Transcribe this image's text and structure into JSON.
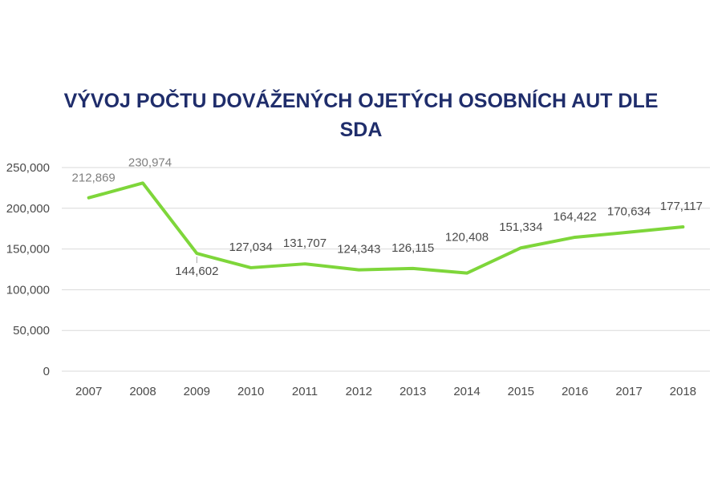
{
  "chart_data": {
    "type": "line",
    "title_line1": "VÝVOJ POČTU DOVÁŽENÝCH OJETÝCH OSOBNÍCH AUT DLE",
    "title_line2": "SDA",
    "xlabel": "",
    "ylabel": "",
    "categories": [
      "2007",
      "2008",
      "2009",
      "2010",
      "2011",
      "2012",
      "2013",
      "2014",
      "2015",
      "2016",
      "2017",
      "2018"
    ],
    "values": [
      212869,
      230974,
      144602,
      127034,
      131707,
      124343,
      126115,
      120408,
      151334,
      164422,
      170634,
      177117
    ],
    "value_labels": [
      "212,869",
      "230,974",
      "144,602",
      "127,034",
      "131,707",
      "124,343",
      "126,115",
      "120,408",
      "151,334",
      "164,422",
      "170,634",
      "177,117"
    ],
    "ylim": [
      0,
      250000
    ],
    "yticks": [
      0,
      50000,
      100000,
      150000,
      200000,
      250000
    ],
    "ytick_labels": [
      "0",
      "50,000",
      "100,000",
      "150,000",
      "200,000",
      "250,000"
    ],
    "grid": true,
    "line_color": "#7ed63a",
    "title_color": "#1f2d6b"
  }
}
